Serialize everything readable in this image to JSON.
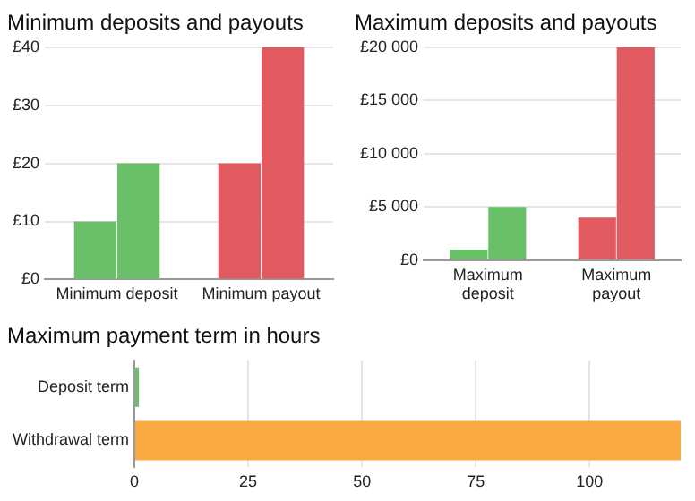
{
  "chart_data": [
    {
      "type": "bar",
      "title": "Minimum deposits and payouts",
      "categories": [
        "Minimum deposit",
        "Minimum payout"
      ],
      "series": [
        {
          "colors": [
            "#6abf69",
            "#e05a5f"
          ],
          "values": [
            10,
            20
          ]
        },
        {
          "colors": [
            "#6abf69",
            "#e05a5f"
          ],
          "values": [
            20,
            40
          ]
        }
      ],
      "ylim": [
        0,
        40
      ],
      "yticks": [
        {
          "value": 0,
          "label": "£0"
        },
        {
          "value": 10,
          "label": "£10"
        },
        {
          "value": 20,
          "label": "£20"
        },
        {
          "value": 30,
          "label": "£30"
        },
        {
          "value": 40,
          "label": "£40"
        }
      ],
      "grid": "y"
    },
    {
      "type": "bar",
      "title": "Maximum deposits and payouts",
      "categories": [
        "Maximum deposit",
        "Maximum payout"
      ],
      "series": [
        {
          "colors": [
            "#6abf69",
            "#e05a5f"
          ],
          "values": [
            1000,
            4000
          ]
        },
        {
          "colors": [
            "#6abf69",
            "#e05a5f"
          ],
          "values": [
            5000,
            20000
          ]
        }
      ],
      "ylim": [
        0,
        20000
      ],
      "yticks": [
        {
          "value": 0,
          "label": "£0"
        },
        {
          "value": 5000,
          "label": "£5 000"
        },
        {
          "value": 10000,
          "label": "£10 000"
        },
        {
          "value": 15000,
          "label": "£15 000"
        },
        {
          "value": 20000,
          "label": "£20 000"
        }
      ],
      "grid": "y"
    },
    {
      "type": "bar",
      "orientation": "horizontal",
      "title": "Maximum payment term in hours",
      "categories": [
        "Deposit term",
        "Withdrawal term"
      ],
      "values": [
        1,
        120
      ],
      "colors": [
        "#6abf69",
        "#f8a940"
      ],
      "xlim": [
        0,
        120
      ],
      "xticks": [
        0,
        25,
        50,
        75,
        100
      ],
      "grid": "x"
    }
  ]
}
